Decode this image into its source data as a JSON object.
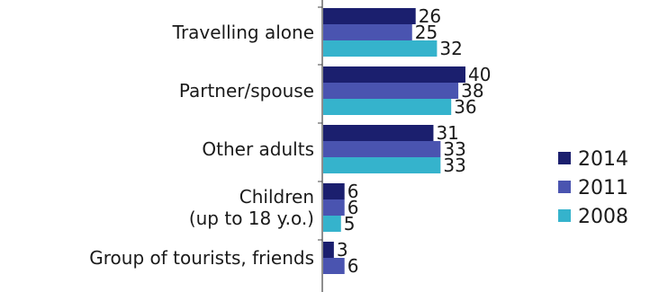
{
  "chart_data": {
    "type": "bar",
    "orientation": "horizontal",
    "categories": [
      [
        "Travelling alone"
      ],
      [
        "Partner/spouse"
      ],
      [
        "Other adults"
      ],
      [
        "Children",
        "(up to 18 y.o.)"
      ],
      [
        "Group of tourists, friends"
      ]
    ],
    "series": [
      {
        "name": "2014",
        "color": "#1b1f6e",
        "values": [
          26,
          40,
          31,
          6,
          3
        ]
      },
      {
        "name": "2011",
        "color": "#4a54b0",
        "values": [
          25,
          38,
          33,
          6,
          6
        ]
      },
      {
        "name": "2008",
        "color": "#35b3cc",
        "values": [
          32,
          36,
          33,
          5,
          null
        ]
      }
    ],
    "xlim": [
      0,
      100
    ],
    "grid": false,
    "legend": "right"
  }
}
